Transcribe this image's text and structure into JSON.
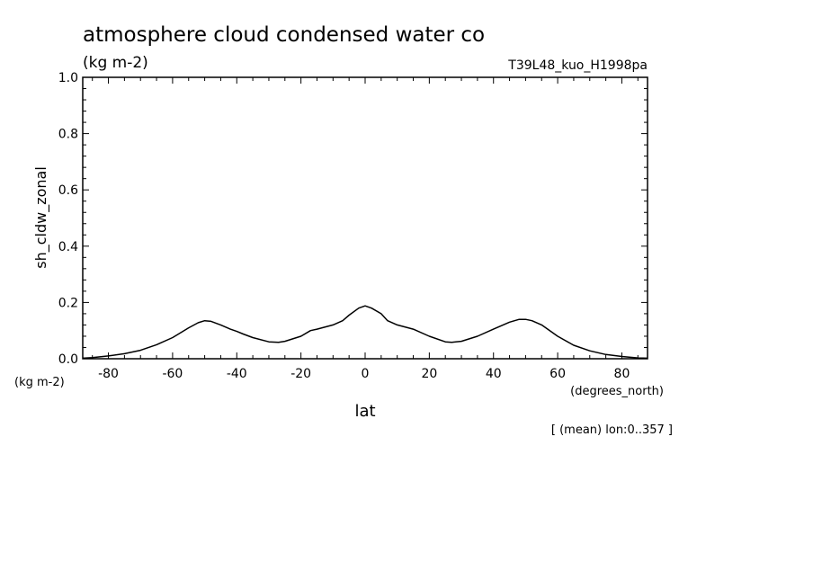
{
  "chart_data": {
    "type": "line",
    "title": "atmosphere cloud condensed water co",
    "units_label": "(kg m-2)",
    "experiment": "T39L48_kuo_H1998pa",
    "ylabel": "sh_cldw_zonal",
    "y_units": "(kg m-2)",
    "xlabel": "lat",
    "x_units": "(degrees_north)",
    "footnote": "[ (mean) lon:0..357 ]",
    "xlim": [
      -88,
      88
    ],
    "ylim": [
      0,
      1
    ],
    "x_ticks": [
      -80,
      -60,
      -40,
      -20,
      0,
      20,
      40,
      60,
      80
    ],
    "x_tick_labels": [
      "-80",
      "-60",
      "-40",
      "-20",
      "0",
      "20",
      "40",
      "60",
      "80"
    ],
    "y_ticks": [
      0,
      0.2,
      0.4,
      0.6,
      0.8,
      1.0
    ],
    "y_tick_labels": [
      "0.0",
      "0.2",
      "0.4",
      "0.6",
      "0.8",
      "1.0"
    ],
    "grid": false,
    "series": [
      {
        "x": [
          -88,
          -85,
          -80,
          -75,
          -70,
          -65,
          -60,
          -55,
          -52,
          -50,
          -48,
          -45,
          -42,
          -40,
          -38,
          -35,
          -30,
          -27,
          -25,
          -20,
          -17,
          -15,
          -10,
          -7,
          -5,
          -2,
          0,
          2,
          5,
          7,
          10,
          15,
          20,
          25,
          27,
          30,
          35,
          40,
          45,
          48,
          50,
          52,
          55,
          60,
          65,
          70,
          75,
          80,
          85,
          88
        ],
        "y": [
          0.002,
          0.004,
          0.01,
          0.018,
          0.03,
          0.05,
          0.075,
          0.11,
          0.128,
          0.135,
          0.133,
          0.12,
          0.105,
          0.097,
          0.088,
          0.075,
          0.06,
          0.058,
          0.062,
          0.08,
          0.1,
          0.105,
          0.12,
          0.135,
          0.155,
          0.18,
          0.188,
          0.18,
          0.16,
          0.135,
          0.12,
          0.105,
          0.08,
          0.06,
          0.058,
          0.062,
          0.08,
          0.105,
          0.13,
          0.14,
          0.14,
          0.135,
          0.12,
          0.08,
          0.048,
          0.028,
          0.015,
          0.008,
          0.003,
          0.002
        ]
      }
    ]
  }
}
